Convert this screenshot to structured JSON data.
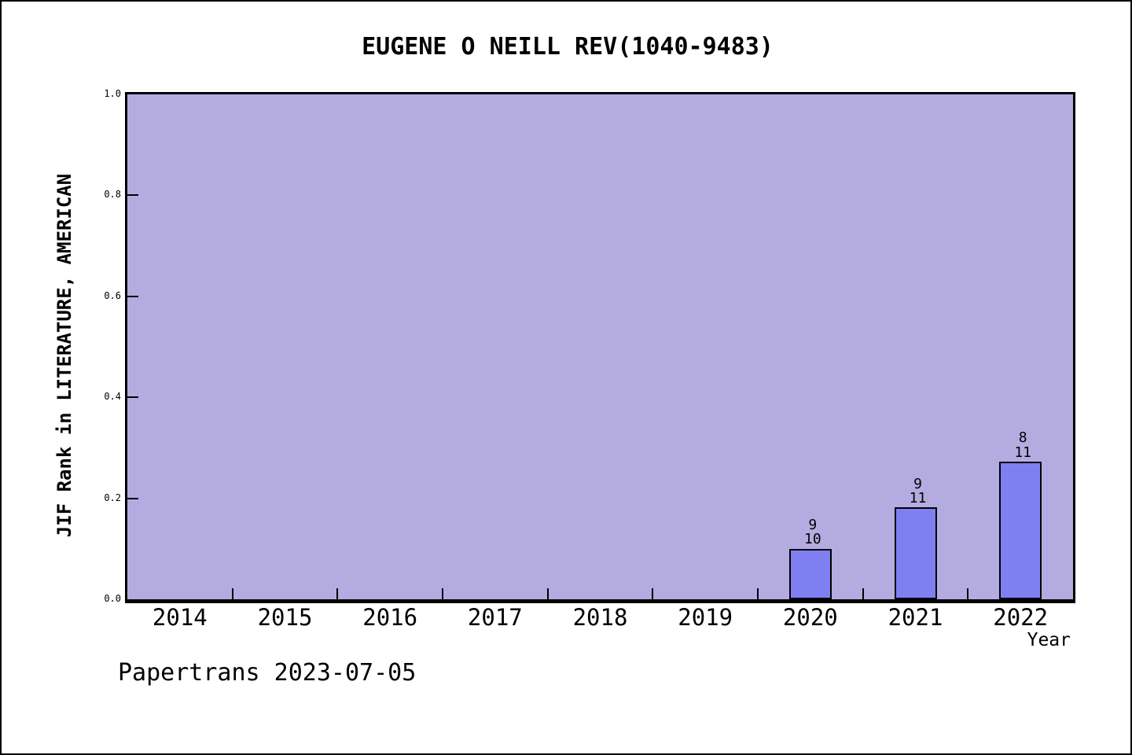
{
  "chart_data": {
    "type": "bar",
    "title": "EUGENE O NEILL REV(1040-9483)",
    "xlabel": "Year",
    "ylabel": "JIF Rank in LITERATURE, AMERICAN",
    "categories": [
      "2014",
      "2015",
      "2016",
      "2017",
      "2018",
      "2019",
      "2020",
      "2021",
      "2022"
    ],
    "values": [
      null,
      null,
      null,
      null,
      null,
      null,
      0.1,
      0.1818,
      0.2727
    ],
    "bar_labels": [
      null,
      null,
      null,
      null,
      null,
      null,
      "9\n10",
      "9\n11",
      "8\n11"
    ],
    "bar_label_meaning": "JIF rank / total journals in category",
    "yticks": [
      0.0,
      0.2,
      0.4,
      0.6,
      0.8,
      1.0
    ],
    "ytick_labels": [
      "0.0",
      "0.2",
      "0.4",
      "0.6",
      "0.8",
      "1.0"
    ],
    "ylim": [
      0,
      1
    ],
    "grid": false,
    "legend": "none",
    "colors": {
      "plot_background": "#b4ace1",
      "bar_fill": "#7f7ff2",
      "bar_edge": "#000000",
      "axis": "#000000",
      "text": "#000000",
      "page_background": "#ffffff"
    },
    "annotation": "Papertrans 2023-07-05"
  }
}
